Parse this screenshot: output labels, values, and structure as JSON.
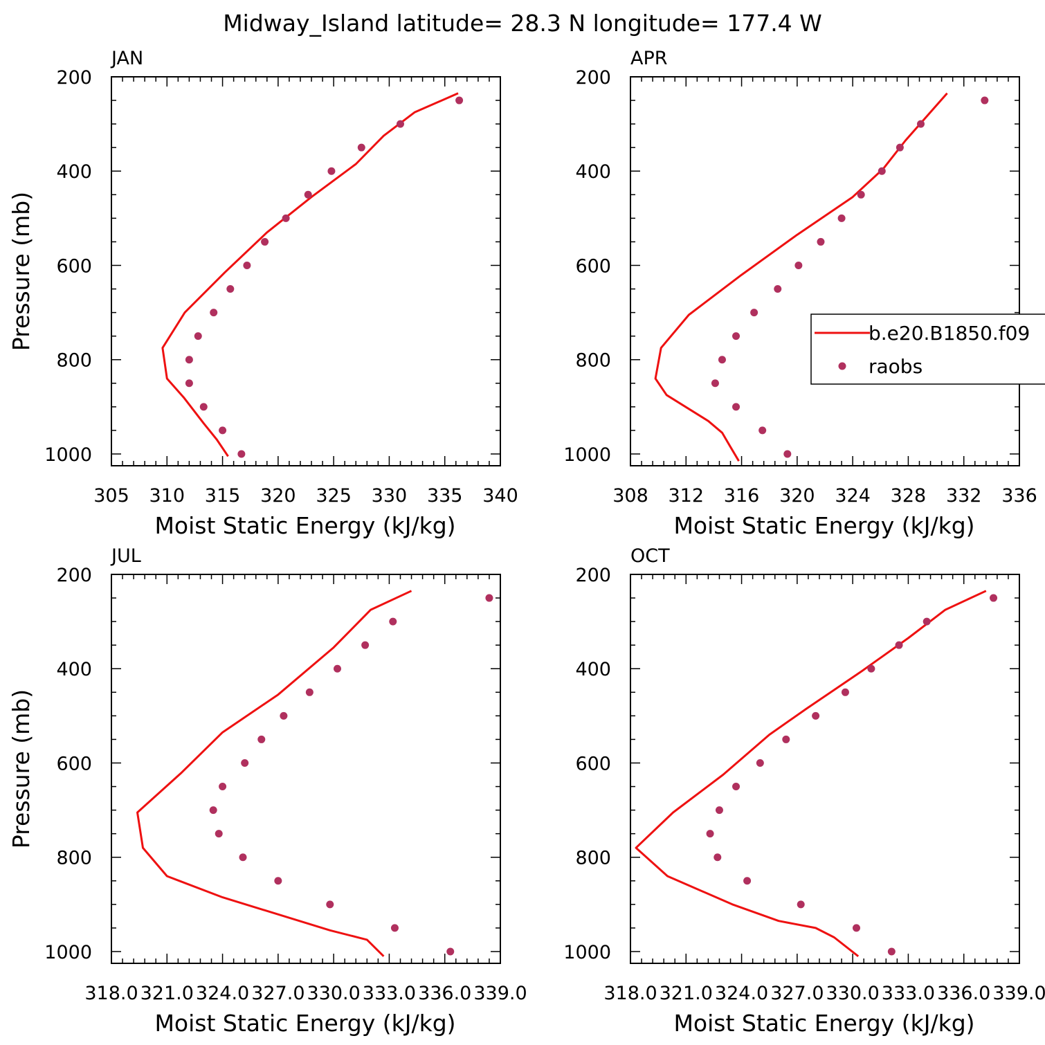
{
  "title": "Midway_Island  latitude= 28.3 N longitude= 177.4 W",
  "colors": {
    "model_line": "#ee1111",
    "raobs_marker": "#b0305e",
    "axes": "#000000"
  },
  "legend": {
    "location": "APR panel, right side",
    "entries": [
      {
        "label": "b.e20.B1850.f09",
        "style": "line",
        "color": "#ee1111"
      },
      {
        "label": "raobs",
        "style": "marker",
        "color": "#b0305e"
      }
    ]
  },
  "chart_data": [
    {
      "type": "line",
      "panel": "JAN",
      "title": "JAN",
      "xlabel": "Moist Static Energy (kJ/kg)",
      "ylabel": "Pressure (mb)",
      "xlim": [
        305,
        340
      ],
      "ylim": [
        1025,
        200
      ],
      "xticks": [
        305,
        310,
        315,
        320,
        325,
        330,
        335,
        340
      ],
      "xtick_labels": [
        "305",
        "310",
        "315",
        "320",
        "325",
        "330",
        "335",
        "340"
      ],
      "yticks": [
        200,
        400,
        600,
        800,
        1000
      ],
      "ytick_labels": [
        "200",
        "400",
        "600",
        "800",
        "1000"
      ],
      "series": [
        {
          "name": "b.e20.B1850.f09",
          "kind": "line",
          "x": [
            315.5,
            314.5,
            313.3,
            311.5,
            310.0,
            309.6,
            311.6,
            315.2,
            319.0,
            323.0,
            327.0,
            329.5,
            332.3,
            336.2
          ],
          "y": [
            1005,
            970,
            935,
            880,
            840,
            775,
            700,
            615,
            530,
            455,
            385,
            325,
            275,
            235
          ]
        },
        {
          "name": "raobs",
          "kind": "scatter",
          "x": [
            316.7,
            315.0,
            313.3,
            312.0,
            312.0,
            312.8,
            314.2,
            315.7,
            317.2,
            318.8,
            320.7,
            322.7,
            324.8,
            327.5,
            331.0,
            336.3
          ],
          "y": [
            1000,
            950,
            900,
            850,
            800,
            750,
            700,
            650,
            600,
            550,
            500,
            450,
            400,
            350,
            300,
            250
          ]
        }
      ]
    },
    {
      "type": "line",
      "panel": "APR",
      "title": "APR",
      "xlabel": "Moist Static Energy (kJ/kg)",
      "ylabel": "",
      "xlim": [
        308,
        336
      ],
      "ylim": [
        1025,
        200
      ],
      "xticks": [
        308,
        312,
        316,
        320,
        324,
        328,
        332,
        336
      ],
      "xtick_labels": [
        "308",
        "312",
        "316",
        "320",
        "324",
        "328",
        "332",
        "336"
      ],
      "yticks": [
        200,
        400,
        600,
        800,
        1000
      ],
      "ytick_labels": [
        "200",
        "400",
        "600",
        "800",
        "1000"
      ],
      "series": [
        {
          "name": "b.e20.B1850.f09",
          "kind": "line",
          "x": [
            315.8,
            315.2,
            314.6,
            313.6,
            310.6,
            309.8,
            310.2,
            312.2,
            316.0,
            320.0,
            324.0,
            326.2,
            327.8,
            330.8
          ],
          "y": [
            1015,
            985,
            955,
            930,
            875,
            840,
            775,
            705,
            620,
            535,
            455,
            395,
            335,
            235
          ]
        },
        {
          "name": "raobs",
          "kind": "scatter",
          "x": [
            319.3,
            317.5,
            315.6,
            314.1,
            314.6,
            315.6,
            316.9,
            318.6,
            320.1,
            321.7,
            323.2,
            324.6,
            326.1,
            327.4,
            328.9,
            333.5
          ],
          "y": [
            1000,
            950,
            900,
            850,
            800,
            750,
            700,
            650,
            600,
            550,
            500,
            450,
            400,
            350,
            300,
            250
          ]
        }
      ]
    },
    {
      "type": "line",
      "panel": "JUL",
      "title": "JUL",
      "xlabel": "Moist Static Energy (kJ/kg)",
      "ylabel": "Pressure (mb)",
      "xlim": [
        318.0,
        339.0
      ],
      "ylim": [
        1025,
        200
      ],
      "xticks": [
        318,
        321,
        324,
        327,
        330,
        333,
        336,
        339
      ],
      "xtick_labels": [
        "318.0",
        "321.0",
        "324.0",
        "327.0",
        "330.0",
        "333.0",
        "336.0",
        "339.0"
      ],
      "yticks": [
        200,
        400,
        600,
        800,
        1000
      ],
      "ytick_labels": [
        "200",
        "400",
        "600",
        "800",
        "1000"
      ],
      "series": [
        {
          "name": "b.e20.B1850.f09",
          "kind": "line",
          "x": [
            332.7,
            331.8,
            329.8,
            324.0,
            321.0,
            319.7,
            319.4,
            321.8,
            324.0,
            327.0,
            330.0,
            332.0,
            334.2
          ],
          "y": [
            1010,
            975,
            955,
            885,
            840,
            780,
            705,
            620,
            535,
            455,
            355,
            275,
            235
          ]
        },
        {
          "name": "raobs",
          "kind": "scatter",
          "x": [
            336.3,
            333.3,
            329.8,
            327.0,
            325.1,
            323.8,
            323.5,
            324.0,
            325.2,
            326.1,
            327.3,
            328.7,
            330.2,
            331.7,
            333.2,
            338.4
          ],
          "y": [
            1000,
            950,
            900,
            850,
            800,
            750,
            700,
            650,
            600,
            550,
            500,
            450,
            400,
            350,
            300,
            250
          ]
        }
      ]
    },
    {
      "type": "line",
      "panel": "OCT",
      "title": "OCT",
      "xlabel": "Moist Static Energy (kJ/kg)",
      "ylabel": "",
      "xlim": [
        318.0,
        339.0
      ],
      "ylim": [
        1025,
        200
      ],
      "xticks": [
        318,
        321,
        324,
        327,
        330,
        333,
        336,
        339
      ],
      "xtick_labels": [
        "318.0",
        "321.0",
        "324.0",
        "327.0",
        "330.0",
        "333.0",
        "336.0",
        "339.0"
      ],
      "yticks": [
        200,
        400,
        600,
        800,
        1000
      ],
      "ytick_labels": [
        "200",
        "400",
        "600",
        "800",
        "1000"
      ],
      "series": [
        {
          "name": "b.e20.B1850.f09",
          "kind": "line",
          "x": [
            330.3,
            329.0,
            328.0,
            326.0,
            323.5,
            320.0,
            318.3,
            320.3,
            323.0,
            325.5,
            327.5,
            329.0,
            330.5,
            333.0,
            335.0,
            337.2
          ],
          "y": [
            1010,
            970,
            950,
            935,
            900,
            840,
            780,
            705,
            625,
            540,
            485,
            445,
            405,
            335,
            275,
            235
          ]
        },
        {
          "name": "raobs",
          "kind": "scatter",
          "x": [
            332.1,
            330.2,
            327.2,
            324.3,
            322.7,
            322.3,
            322.8,
            323.7,
            325.0,
            326.4,
            328.0,
            329.6,
            331.0,
            332.5,
            334.0,
            337.6
          ],
          "y": [
            1000,
            950,
            900,
            850,
            800,
            750,
            700,
            650,
            600,
            550,
            500,
            450,
            400,
            350,
            300,
            250
          ]
        }
      ]
    }
  ]
}
